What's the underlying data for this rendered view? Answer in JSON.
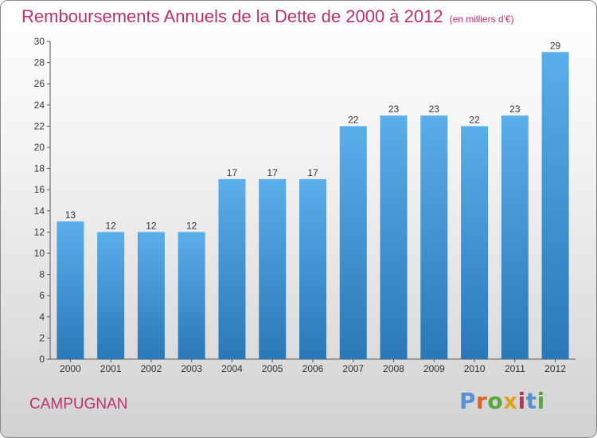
{
  "header": {
    "title": "Remboursements Annuels de la Dette de 2000 à 2012",
    "unit": "(en milliers d'€)"
  },
  "footer": {
    "commune": "CAMPUGNAN",
    "logo_text": "Proxiti"
  },
  "colors": {
    "title": "#c0306a",
    "bar_top": "#5aaeea",
    "bar_bottom": "#2a78b8",
    "logo_letters": [
      "#5a8fd0",
      "#e0602a",
      "#59a63a",
      "#e0a020",
      "#c03060",
      "#5a8fd0",
      "#59a63a"
    ]
  },
  "chart_data": {
    "type": "bar",
    "categories": [
      "2000",
      "2001",
      "2002",
      "2003",
      "2004",
      "2005",
      "2006",
      "2007",
      "2008",
      "2009",
      "2010",
      "2011",
      "2012"
    ],
    "values": [
      13,
      12,
      12,
      12,
      17,
      17,
      17,
      22,
      23,
      23,
      22,
      23,
      29
    ],
    "ylim": [
      0,
      30
    ],
    "yticks": [
      0,
      2,
      4,
      6,
      8,
      10,
      12,
      14,
      16,
      18,
      20,
      22,
      24,
      26,
      28,
      30
    ],
    "grid": false,
    "data_labels": true
  }
}
